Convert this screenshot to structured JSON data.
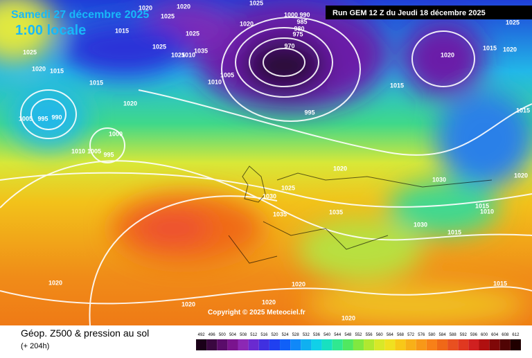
{
  "header": {
    "date": "Samedi 27 décembre 2025",
    "time": "1:00 locale",
    "run": "Run GEM 12 Z du Jeudi 18 décembre 2025"
  },
  "copyright": "Copyright © 2025 Meteociel.fr",
  "footer": {
    "title": "Géop. Z500 & pression au sol",
    "lead": "(+ 204h)"
  },
  "colorbar": {
    "values": [
      492,
      496,
      500,
      504,
      508,
      512,
      516,
      520,
      524,
      528,
      532,
      536,
      540,
      544,
      548,
      552,
      556,
      560,
      564,
      568,
      572,
      576,
      580,
      584,
      588,
      592,
      596,
      600,
      604,
      608,
      612
    ]
  },
  "isobar_labels": [
    "1020",
    "1025",
    "1020",
    "1025",
    "1020",
    "1015",
    "1025",
    "1025",
    "1035",
    "1025",
    "1010",
    "1025",
    "1020",
    "1015",
    "1015",
    "1005",
    "1010",
    "1000",
    "990",
    "985",
    "980",
    "975",
    "970",
    "1015",
    "1020",
    "1015",
    "1020",
    "1020",
    "995",
    "1005",
    "995",
    "990",
    "1000",
    "1010",
    "1005",
    "995",
    "1020",
    "1030",
    "1020",
    "1025",
    "1030",
    "1035",
    "1030",
    "1015",
    "1010",
    "1015",
    "1035",
    "1020",
    "1020",
    "1020",
    "1020",
    "1015",
    "1020",
    "1015",
    "1025"
  ]
}
